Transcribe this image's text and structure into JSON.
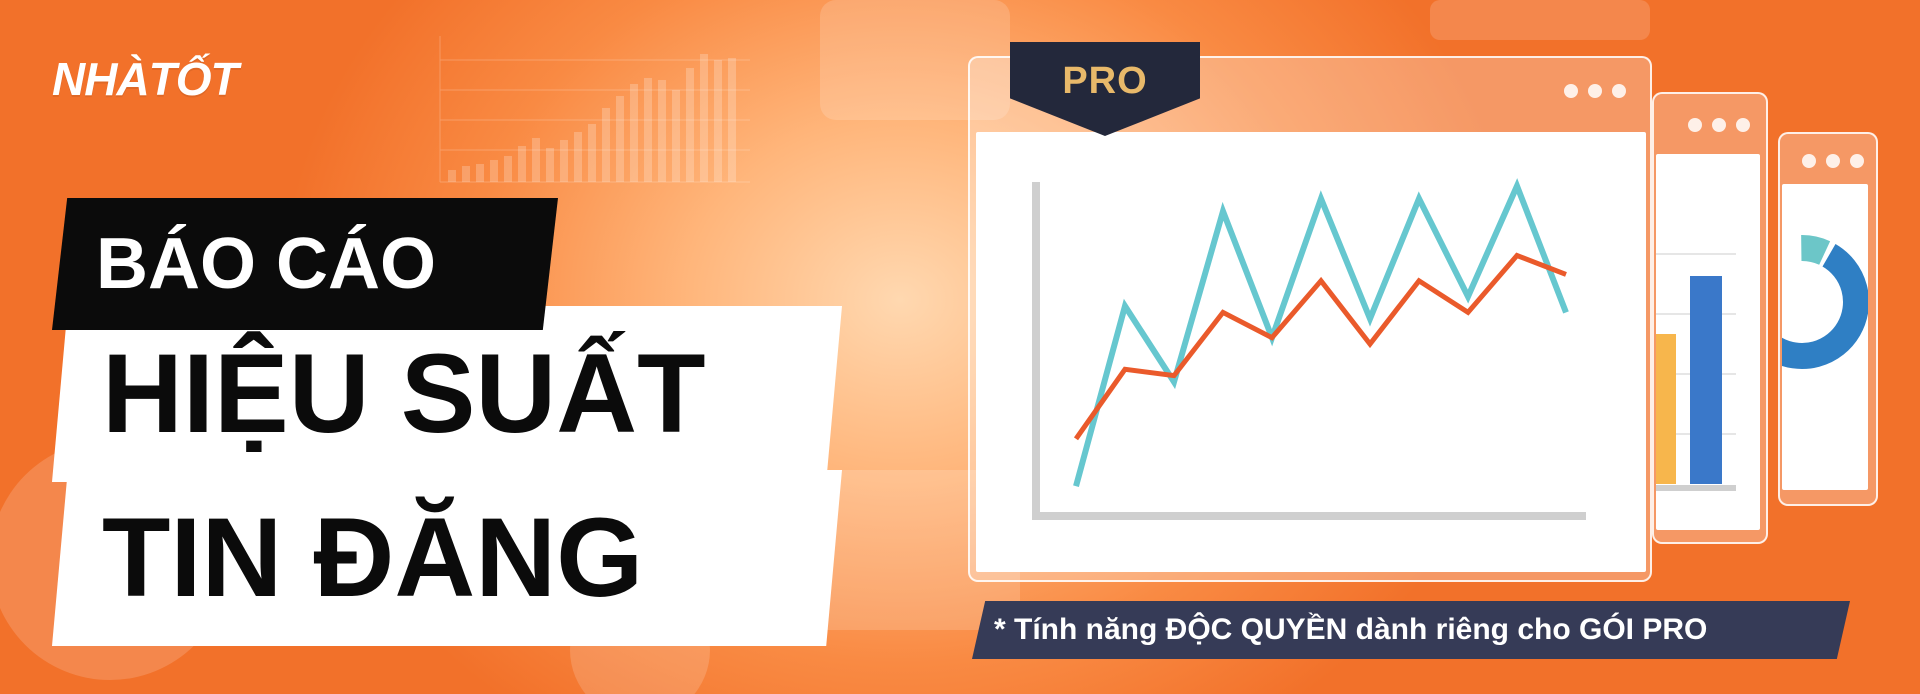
{
  "brand": {
    "logo_text": "NHÀTỐT"
  },
  "headline": {
    "line1": "BÁO CÁO",
    "line2": "HIỆU SUẤT",
    "line3": "TIN ĐĂNG"
  },
  "badge": {
    "label": "PRO"
  },
  "footnote": {
    "text": "* Tính năng ĐỘC QUYỀN dành riêng cho GÓI PRO"
  },
  "colors": {
    "brand_orange": "#f2712a",
    "line_teal": "#66c7cf",
    "line_orange": "#ea5a2b",
    "bar_blue": "#3a78c9",
    "bar_yellow": "#f7b64c",
    "badge_navy": "#23283b",
    "badge_gold": "#e8b96a",
    "note_navy": "#363b57"
  },
  "chart_data": {
    "type": "line",
    "title": "",
    "xlabel": "",
    "ylabel": "",
    "x": [
      1,
      2,
      3,
      4,
      5,
      6,
      7,
      8,
      9,
      10,
      11
    ],
    "series": [
      {
        "color": "#66c7cf",
        "values": [
          5,
          62,
          38,
          92,
          52,
          96,
          58,
          96,
          65,
          100,
          60
        ]
      },
      {
        "color": "#ea5a2b",
        "values": [
          20,
          42,
          40,
          60,
          52,
          70,
          50,
          70,
          60,
          78,
          72
        ]
      }
    ],
    "grid": false
  }
}
